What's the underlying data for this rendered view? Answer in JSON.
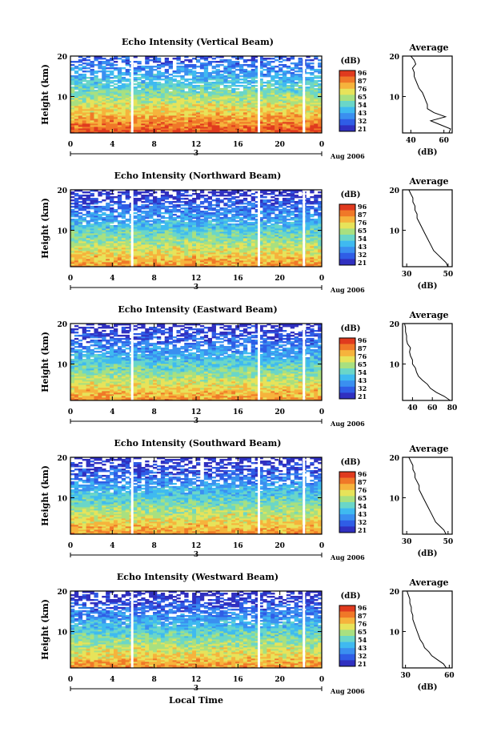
{
  "x_axis_label": "Local Time",
  "chart_data": [
    {
      "type": "heatmap",
      "title": "Echo Intensity (Vertical Beam)",
      "ylabel": "Height (km)",
      "xlabel": "Local Time",
      "x_ticks": [
        "0",
        "4",
        "8",
        "12",
        "16",
        "20",
        "0"
      ],
      "y_ticks": [
        "20",
        "10"
      ],
      "xlim": [
        0,
        24
      ],
      "ylim": [
        1,
        20
      ],
      "date_marker": "3",
      "date_label": "Aug 2006",
      "colorbar": {
        "unit": "(dB)",
        "ticks": [
          "96",
          "87",
          "76",
          "65",
          "54",
          "43",
          "32",
          "21"
        ]
      },
      "color_scale": [
        "#3030c0",
        "#2f5de6",
        "#3a8ff0",
        "#3fbaf0",
        "#6ad6c8",
        "#a8e080",
        "#e7e35a",
        "#f6b33c",
        "#f07828",
        "#e03a1e"
      ],
      "white_gaps_hours": [
        5.9,
        18.0,
        22.3
      ],
      "profile": {
        "title": "Average",
        "xlabel": "(dB)",
        "x_ticks": [
          "40",
          "60"
        ],
        "xlim": [
          35,
          65
        ],
        "y_ticks": [
          "20",
          "10"
        ],
        "heights": [
          1,
          2,
          3,
          4,
          5,
          6,
          7,
          8,
          9,
          10,
          11,
          12,
          13,
          14,
          15,
          16,
          17,
          18,
          19,
          20
        ],
        "values": [
          63,
          64,
          58,
          52,
          61,
          54,
          50,
          50,
          49,
          48,
          47,
          45,
          44,
          43,
          42,
          42,
          41,
          43,
          42,
          40
        ]
      }
    },
    {
      "type": "heatmap",
      "title": "Echo Intensity (Northward Beam)",
      "ylabel": "Height (km)",
      "xlabel": "Local Time",
      "x_ticks": [
        "0",
        "4",
        "8",
        "12",
        "16",
        "20",
        "0"
      ],
      "y_ticks": [
        "20",
        "10"
      ],
      "xlim": [
        0,
        24
      ],
      "ylim": [
        1,
        20
      ],
      "date_marker": "3",
      "date_label": "Aug 2006",
      "colorbar": {
        "unit": "(dB)",
        "ticks": [
          "96",
          "87",
          "76",
          "65",
          "54",
          "43",
          "32",
          "21"
        ]
      },
      "color_scale": [
        "#3030c0",
        "#2f5de6",
        "#3a8ff0",
        "#3fbaf0",
        "#6ad6c8",
        "#a8e080",
        "#e7e35a",
        "#f6b33c",
        "#f07828",
        "#e03a1e"
      ],
      "white_gaps_hours": [
        5.9,
        18.0,
        22.3
      ],
      "profile": {
        "title": "Average",
        "xlabel": "(dB)",
        "x_ticks": [
          "30",
          "50"
        ],
        "xlim": [
          28,
          52
        ],
        "y_ticks": [
          "20",
          "10"
        ],
        "heights": [
          1,
          2,
          3,
          4,
          5,
          6,
          7,
          8,
          9,
          10,
          11,
          12,
          13,
          14,
          15,
          16,
          17,
          18,
          19,
          20
        ],
        "values": [
          50,
          49,
          47,
          45,
          43,
          42,
          41,
          40,
          39,
          38,
          37,
          36,
          35,
          35,
          34,
          34,
          33,
          33,
          32,
          31
        ]
      }
    },
    {
      "type": "heatmap",
      "title": "Echo Intensity (Eastward Beam)",
      "ylabel": "Height (km)",
      "xlabel": "Local Time",
      "x_ticks": [
        "0",
        "4",
        "8",
        "12",
        "16",
        "20",
        "0"
      ],
      "y_ticks": [
        "20",
        "10"
      ],
      "xlim": [
        0,
        24
      ],
      "ylim": [
        1,
        20
      ],
      "date_marker": "3",
      "date_label": "Aug 2006",
      "colorbar": {
        "unit": "(dB)",
        "ticks": [
          "96",
          "87",
          "76",
          "65",
          "54",
          "43",
          "32",
          "21"
        ]
      },
      "color_scale": [
        "#3030c0",
        "#2f5de6",
        "#3a8ff0",
        "#3fbaf0",
        "#6ad6c8",
        "#a8e080",
        "#e7e35a",
        "#f6b33c",
        "#f07828",
        "#e03a1e"
      ],
      "white_gaps_hours": [
        5.9,
        18.0,
        22.3
      ],
      "profile": {
        "title": "Average",
        "xlabel": "",
        "x_ticks": [
          "40",
          "60",
          "80"
        ],
        "xlim": [
          30,
          80
        ],
        "y_ticks": [
          "20",
          "10"
        ],
        "heights": [
          1,
          2,
          3,
          4,
          5,
          6,
          7,
          8,
          9,
          10,
          11,
          12,
          13,
          14,
          15,
          16,
          17,
          18,
          19,
          20
        ],
        "values": [
          78,
          72,
          64,
          58,
          55,
          50,
          46,
          44,
          43,
          40,
          40,
          38,
          37,
          38,
          35,
          34,
          34,
          33,
          33,
          32
        ]
      }
    },
    {
      "type": "heatmap",
      "title": "Echo Intensity (Southward Beam)",
      "ylabel": "Height (km)",
      "xlabel": "Local Time",
      "x_ticks": [
        "0",
        "4",
        "8",
        "12",
        "16",
        "20",
        "0"
      ],
      "y_ticks": [
        "20",
        "10"
      ],
      "xlim": [
        0,
        24
      ],
      "ylim": [
        1,
        20
      ],
      "date_marker": "3",
      "date_label": "Aug 2006",
      "colorbar": {
        "unit": "(dB)",
        "ticks": [
          "96",
          "87",
          "76",
          "65",
          "54",
          "43",
          "32",
          "21"
        ]
      },
      "color_scale": [
        "#3030c0",
        "#2f5de6",
        "#3a8ff0",
        "#3fbaf0",
        "#6ad6c8",
        "#a8e080",
        "#e7e35a",
        "#f6b33c",
        "#f07828",
        "#e03a1e"
      ],
      "white_gaps_hours": [
        5.9,
        18.0,
        22.3
      ],
      "profile": {
        "title": "Average",
        "xlabel": "(dB)",
        "x_ticks": [
          "30",
          "50"
        ],
        "xlim": [
          28,
          52
        ],
        "y_ticks": [
          "20",
          "10"
        ],
        "heights": [
          1,
          2,
          3,
          4,
          5,
          6,
          7,
          8,
          9,
          10,
          11,
          12,
          13,
          14,
          15,
          16,
          17,
          18,
          19,
          20
        ],
        "values": [
          49,
          48,
          46,
          44,
          43,
          42,
          41,
          40,
          39,
          38,
          37,
          36,
          36,
          35,
          34,
          34,
          33,
          33,
          32,
          31
        ]
      }
    },
    {
      "type": "heatmap",
      "title": "Echo Intensity (Westward Beam)",
      "ylabel": "Height (km)",
      "xlabel": "Local Time",
      "x_ticks": [
        "0",
        "4",
        "8",
        "12",
        "16",
        "20",
        "0"
      ],
      "y_ticks": [
        "20",
        "10"
      ],
      "xlim": [
        0,
        24
      ],
      "ylim": [
        1,
        20
      ],
      "date_marker": "3",
      "date_label": "Aug 2006",
      "colorbar": {
        "unit": "(dB)",
        "ticks": [
          "96",
          "87",
          "76",
          "65",
          "54",
          "43",
          "32",
          "21"
        ]
      },
      "color_scale": [
        "#3030c0",
        "#2f5de6",
        "#3a8ff0",
        "#3fbaf0",
        "#6ad6c8",
        "#a8e080",
        "#e7e35a",
        "#f6b33c",
        "#f07828",
        "#e03a1e"
      ],
      "white_gaps_hours": [
        5.9,
        18.0,
        22.3
      ],
      "profile": {
        "title": "Average",
        "xlabel": "(dB)",
        "x_ticks": [
          "30",
          "60"
        ],
        "xlim": [
          28,
          62
        ],
        "y_ticks": [
          "20",
          "10"
        ],
        "heights": [
          1,
          2,
          3,
          4,
          5,
          6,
          7,
          8,
          9,
          10,
          11,
          12,
          13,
          14,
          15,
          16,
          17,
          18,
          19,
          20
        ],
        "values": [
          58,
          56,
          52,
          48,
          46,
          43,
          42,
          40,
          39,
          38,
          37,
          36,
          35,
          35,
          34,
          34,
          33,
          33,
          32,
          31
        ]
      }
    }
  ]
}
